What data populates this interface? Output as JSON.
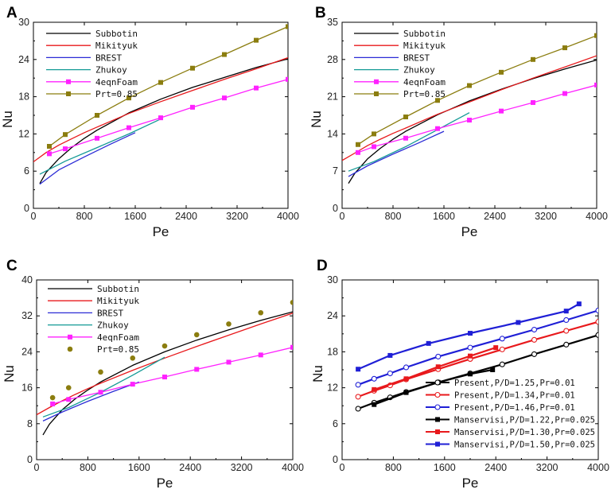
{
  "chart_data": [
    {
      "panel": "A",
      "type": "line",
      "xlabel": "Pe",
      "ylabel": "Nu",
      "xlim": [
        0,
        4000
      ],
      "ylim": [
        0,
        30
      ],
      "xticks": [
        0,
        800,
        1600,
        2400,
        3200,
        4000
      ],
      "yticks": [
        0,
        6,
        12,
        18,
        24,
        30
      ],
      "series": [
        {
          "name": "Subbotin",
          "color": "#000000",
          "marker": "none",
          "x": [
            100,
            200,
            400,
            600,
            800,
            1000,
            1500,
            2000,
            2500,
            3000,
            3500,
            4000
          ],
          "y": [
            4.0,
            5.8,
            8.0,
            9.8,
            11.3,
            12.6,
            15.4,
            17.6,
            19.5,
            21.1,
            22.7,
            24.1
          ]
        },
        {
          "name": "Mikityuk",
          "color": "#e8191c",
          "marker": "none",
          "x": [
            0,
            200,
            400,
            600,
            800,
            1000,
            1500,
            2000,
            2500,
            3000,
            3500,
            4000
          ],
          "y": [
            7.5,
            9.0,
            10.2,
            11.2,
            12.2,
            13.1,
            15.3,
            17.2,
            19.0,
            20.8,
            22.5,
            24.3
          ]
        },
        {
          "name": "BREST",
          "color": "#2b2bd6",
          "marker": "none",
          "x": [
            100,
            400,
            800,
            1200,
            1600
          ],
          "y": [
            3.9,
            6.2,
            8.3,
            10.3,
            12.2
          ]
        },
        {
          "name": "Zhukoy",
          "color": "#139a96",
          "marker": "none",
          "x": [
            100,
            500,
            1000,
            1500,
            2000
          ],
          "y": [
            5.5,
            7.6,
            9.8,
            12.0,
            14.4
          ]
        },
        {
          "name": "4eqnFoam",
          "color": "#ff22ff",
          "marker": "square",
          "x": [
            250,
            500,
            1000,
            1500,
            2000,
            2500,
            3000,
            3500,
            4000
          ],
          "y": [
            8.8,
            9.6,
            11.3,
            13.0,
            14.6,
            16.3,
            17.8,
            19.4,
            20.8
          ]
        },
        {
          "name": "Prt=0.85",
          "color": "#8b7d0f",
          "marker": "square",
          "x": [
            250,
            500,
            1000,
            1500,
            2000,
            2500,
            3000,
            3500,
            4000
          ],
          "y": [
            10.0,
            11.9,
            15.0,
            17.8,
            20.3,
            22.6,
            24.8,
            27.1,
            29.3
          ]
        }
      ]
    },
    {
      "panel": "B",
      "type": "line",
      "xlabel": "Pe",
      "ylabel": "Nu",
      "xlim": [
        0,
        4000
      ],
      "ylim": [
        0,
        35
      ],
      "xticks": [
        0,
        800,
        1600,
        2400,
        3200,
        4000
      ],
      "yticks": [
        0,
        7,
        14,
        21,
        28,
        35
      ],
      "series": [
        {
          "name": "Subbotin",
          "color": "#000000",
          "marker": "none",
          "x": [
            100,
            200,
            400,
            600,
            800,
            1000,
            1500,
            2000,
            2500,
            3000,
            3500,
            4000
          ],
          "y": [
            4.7,
            6.6,
            9.3,
            11.3,
            13.0,
            14.5,
            17.6,
            20.2,
            22.4,
            24.4,
            26.2,
            27.9
          ]
        },
        {
          "name": "Mikityuk",
          "color": "#e8191c",
          "marker": "none",
          "x": [
            0,
            200,
            400,
            600,
            800,
            1000,
            1500,
            2000,
            2500,
            3000,
            3500,
            4000
          ],
          "y": [
            9.0,
            10.4,
            11.8,
            13.0,
            14.1,
            15.1,
            17.7,
            20.0,
            22.3,
            24.5,
            26.6,
            28.7
          ]
        },
        {
          "name": "BREST",
          "color": "#2b2bd6",
          "marker": "none",
          "x": [
            100,
            400,
            800,
            1200,
            1600
          ],
          "y": [
            6.0,
            8.0,
            10.2,
            12.3,
            14.5
          ]
        },
        {
          "name": "Zhukoy",
          "color": "#139a96",
          "marker": "none",
          "x": [
            100,
            500,
            1000,
            1500,
            2000
          ],
          "y": [
            7.0,
            8.8,
            11.6,
            14.8,
            18.0
          ]
        },
        {
          "name": "4eqnFoam",
          "color": "#ff22ff",
          "marker": "square",
          "x": [
            250,
            500,
            1000,
            1500,
            2000,
            2500,
            3000,
            3500,
            4000
          ],
          "y": [
            10.5,
            11.6,
            13.2,
            15.0,
            16.6,
            18.3,
            19.9,
            21.6,
            23.2
          ]
        },
        {
          "name": "Prt=0.85",
          "color": "#8b7d0f",
          "marker": "square",
          "x": [
            250,
            500,
            1000,
            1500,
            2000,
            2500,
            3000,
            3500,
            4000
          ],
          "y": [
            12.0,
            14.0,
            17.2,
            20.3,
            23.1,
            25.6,
            28.0,
            30.2,
            32.5
          ]
        }
      ]
    },
    {
      "panel": "C",
      "type": "line",
      "xlabel": "Pe",
      "ylabel": "Nu",
      "xlim": [
        0,
        4000
      ],
      "ylim": [
        0,
        40
      ],
      "xticks": [
        0,
        800,
        1600,
        2400,
        3200,
        4000
      ],
      "yticks": [
        0,
        8,
        16,
        24,
        32,
        40
      ],
      "series": [
        {
          "name": "Subbotin",
          "color": "#000000",
          "marker": "none",
          "x": [
            100,
            200,
            400,
            600,
            800,
            1000,
            1500,
            2000,
            2500,
            3000,
            3500,
            4000
          ],
          "y": [
            5.5,
            7.9,
            11.1,
            13.5,
            15.5,
            17.3,
            21.0,
            24.0,
            26.6,
            28.9,
            31.0,
            32.9
          ]
        },
        {
          "name": "Mikityuk",
          "color": "#e8191c",
          "marker": "none",
          "x": [
            0,
            200,
            400,
            600,
            800,
            1000,
            1500,
            2000,
            2500,
            3000,
            3500,
            4000
          ],
          "y": [
            10.0,
            11.6,
            13.1,
            14.5,
            15.8,
            17.0,
            19.9,
            22.6,
            25.2,
            27.7,
            30.2,
            32.6
          ]
        },
        {
          "name": "BREST",
          "color": "#2b2bd6",
          "marker": "none",
          "x": [
            100,
            400,
            800,
            1200,
            1600
          ],
          "y": [
            8.6,
            10.6,
            13.0,
            15.2,
            17.3
          ]
        },
        {
          "name": "Zhukoy",
          "color": "#139a96",
          "marker": "none",
          "x": [
            100,
            500,
            1000,
            1500,
            2000
          ],
          "y": [
            9.5,
            11.6,
            15.0,
            18.8,
            22.8
          ]
        },
        {
          "name": "4eqnFoam",
          "color": "#ff22ff",
          "marker": "square",
          "x": [
            250,
            500,
            1000,
            1500,
            2000,
            2500,
            3000,
            3500,
            4000
          ],
          "y": [
            12.4,
            13.4,
            15.0,
            16.8,
            18.4,
            20.1,
            21.7,
            23.3,
            25.0
          ]
        },
        {
          "name": "Prt=0.85",
          "color": "#8b7d0f",
          "marker": "circle-only",
          "x": [
            250,
            500,
            1000,
            1500,
            2000,
            2500,
            3000,
            3500,
            4000
          ],
          "y": [
            13.8,
            16.0,
            19.5,
            22.6,
            25.3,
            27.8,
            30.2,
            32.7,
            35.0
          ]
        }
      ]
    },
    {
      "panel": "D",
      "type": "line",
      "xlabel": "Pe",
      "ylabel": "Nu",
      "xlim": [
        0,
        4000
      ],
      "ylim": [
        0,
        30
      ],
      "xticks": [
        0,
        800,
        1600,
        2400,
        3200,
        4000
      ],
      "yticks": [
        0,
        6,
        12,
        18,
        24,
        30
      ],
      "series": [
        {
          "name": "Present,P/D=1.25,Pr=0.01",
          "color": "#000000",
          "marker": "circle",
          "x": [
            250,
            500,
            750,
            1000,
            1500,
            2000,
            2500,
            3000,
            3500,
            4000
          ],
          "y": [
            8.5,
            9.5,
            10.4,
            11.3,
            12.9,
            14.4,
            15.9,
            17.6,
            19.2,
            20.8
          ]
        },
        {
          "name": "Present,P/D=1.34,Pr=0.01",
          "color": "#e8191c",
          "marker": "circle",
          "x": [
            250,
            500,
            750,
            1000,
            1500,
            2000,
            2500,
            3000,
            3500,
            4000
          ],
          "y": [
            10.5,
            11.5,
            12.4,
            13.4,
            15.1,
            16.8,
            18.4,
            20.0,
            21.5,
            23.0
          ]
        },
        {
          "name": "Present,P/D=1.46,Pr=0.01",
          "color": "#1f1fd6",
          "marker": "circle",
          "x": [
            250,
            500,
            750,
            1000,
            1500,
            2000,
            2500,
            3000,
            3500,
            4000
          ],
          "y": [
            12.5,
            13.5,
            14.4,
            15.4,
            17.2,
            18.7,
            20.2,
            21.7,
            23.3,
            24.9
          ]
        },
        {
          "name": "Manservisi,P/D=1.22,Pr=0.025",
          "color": "#000000",
          "marker": "square",
          "x": [
            500,
            1000,
            1500,
            2000,
            2350
          ],
          "y": [
            9.2,
            11.2,
            12.9,
            14.3,
            15.0
          ]
        },
        {
          "name": "Manservisi,P/D=1.30,Pr=0.025",
          "color": "#e8191c",
          "marker": "square",
          "x": [
            500,
            1000,
            1500,
            2000,
            2400
          ],
          "y": [
            11.7,
            13.5,
            15.5,
            17.3,
            18.7
          ]
        },
        {
          "name": "Manservisi,P/D=1.50,Pr=0.025",
          "color": "#1f1fd6",
          "marker": "square",
          "x": [
            250,
            750,
            1350,
            2000,
            2750,
            3500,
            3700
          ],
          "y": [
            15.1,
            17.4,
            19.4,
            21.1,
            22.9,
            24.8,
            26.0
          ]
        }
      ]
    }
  ]
}
